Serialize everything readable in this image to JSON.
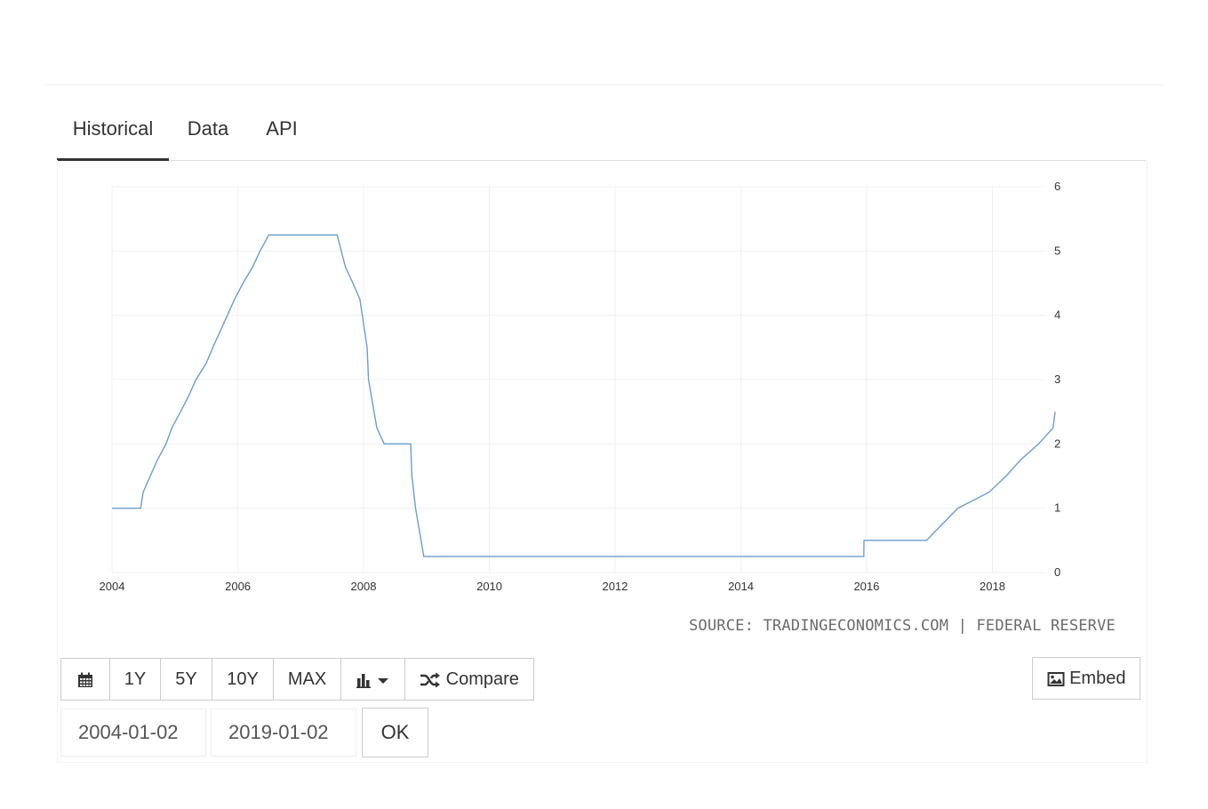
{
  "tabs": [
    {
      "label": "Historical",
      "active": true
    },
    {
      "label": "Data",
      "active": false
    },
    {
      "label": "API",
      "active": false
    }
  ],
  "source_text": "SOURCE: TRADINGECONOMICS.COM | FEDERAL RESERVE",
  "toolbar": {
    "calendar_icon": "calendar-icon",
    "ranges": [
      "1Y",
      "5Y",
      "10Y",
      "MAX"
    ],
    "chart_type_icon": "bar-chart-dropdown-icon",
    "compare_icon": "shuffle-icon",
    "compare_label": "Compare",
    "embed_icon": "image-icon",
    "embed_label": "Embed"
  },
  "date_range": {
    "start": "2004-01-02",
    "end": "2019-01-02",
    "ok_label": "OK"
  },
  "chart_data": {
    "type": "line",
    "title": "",
    "xlabel": "",
    "ylabel": "",
    "x_axis": {
      "type": "time",
      "ticks": [
        "2004",
        "2006",
        "2008",
        "2010",
        "2012",
        "2014",
        "2016",
        "2018"
      ],
      "range": [
        "2004-01-01",
        "2018-12-31"
      ]
    },
    "y_axis": {
      "position": "right",
      "ticks": [
        0,
        1,
        2,
        3,
        4,
        5,
        6
      ],
      "range": [
        0,
        6
      ]
    },
    "grid": true,
    "line_color": "#6a9ecf",
    "series": [
      {
        "name": "",
        "points": [
          [
            "2004-01-01",
            1.0
          ],
          [
            "2004-06-15",
            1.0
          ],
          [
            "2004-06-30",
            1.25
          ],
          [
            "2004-08-10",
            1.5
          ],
          [
            "2004-09-21",
            1.75
          ],
          [
            "2004-11-10",
            2.0
          ],
          [
            "2004-12-14",
            2.25
          ],
          [
            "2005-02-02",
            2.5
          ],
          [
            "2005-03-22",
            2.75
          ],
          [
            "2005-05-03",
            3.0
          ],
          [
            "2005-06-30",
            3.25
          ],
          [
            "2005-08-09",
            3.5
          ],
          [
            "2005-09-20",
            3.75
          ],
          [
            "2005-11-01",
            4.0
          ],
          [
            "2005-12-13",
            4.25
          ],
          [
            "2006-01-31",
            4.5
          ],
          [
            "2006-03-28",
            4.75
          ],
          [
            "2006-05-10",
            5.0
          ],
          [
            "2006-06-29",
            5.25
          ],
          [
            "2007-08-01",
            5.25
          ],
          [
            "2007-09-18",
            4.75
          ],
          [
            "2007-10-31",
            4.5
          ],
          [
            "2007-12-11",
            4.25
          ],
          [
            "2008-01-22",
            3.5
          ],
          [
            "2008-01-30",
            3.0
          ],
          [
            "2008-03-18",
            2.25
          ],
          [
            "2008-04-30",
            2.0
          ],
          [
            "2008-10-01",
            2.0
          ],
          [
            "2008-10-08",
            1.5
          ],
          [
            "2008-10-29",
            1.0
          ],
          [
            "2008-12-16",
            0.25
          ],
          [
            "2015-12-16",
            0.25
          ],
          [
            "2015-12-17",
            0.5
          ],
          [
            "2016-12-14",
            0.5
          ],
          [
            "2017-03-15",
            0.75
          ],
          [
            "2017-06-14",
            1.0
          ],
          [
            "2017-12-13",
            1.25
          ],
          [
            "2018-03-21",
            1.5
          ],
          [
            "2018-06-13",
            1.75
          ],
          [
            "2018-09-26",
            2.0
          ],
          [
            "2018-12-19",
            2.25
          ],
          [
            "2018-12-31",
            2.5
          ]
        ]
      }
    ]
  }
}
